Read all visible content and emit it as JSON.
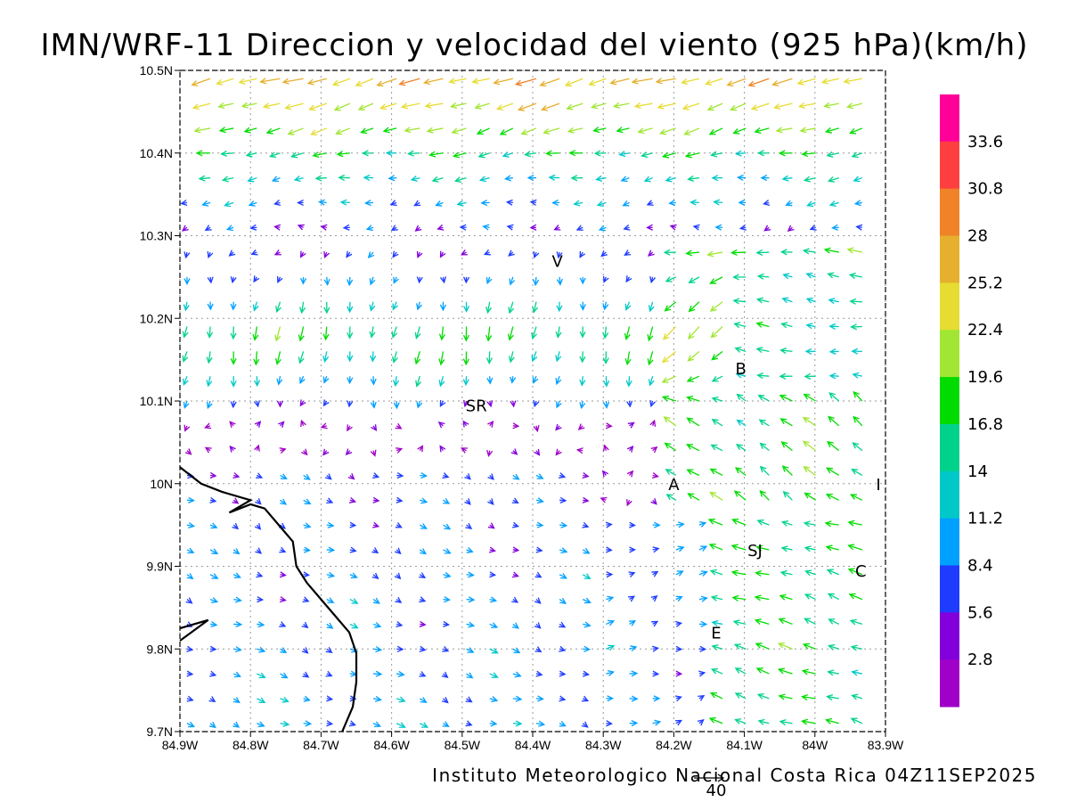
{
  "title": "IMN/WRF-11 Direccion y velocidad del viento (925 hPa)(km/h)",
  "footer": "Instituto Meteorologico Nacional Costa Rica 04Z11SEP2025",
  "reference_vector": {
    "label": "40",
    "value": 40
  },
  "map": {
    "lon_range": [
      -84.9,
      -83.9
    ],
    "lat_range": [
      9.7,
      10.5
    ],
    "x_ticks": [
      {
        "value": -84.9,
        "label": "84.9W"
      },
      {
        "value": -84.8,
        "label": "84.8W"
      },
      {
        "value": -84.7,
        "label": "84.7W"
      },
      {
        "value": -84.6,
        "label": "84.6W"
      },
      {
        "value": -84.5,
        "label": "84.5W"
      },
      {
        "value": -84.4,
        "label": "84.4W"
      },
      {
        "value": -84.3,
        "label": "84.3W"
      },
      {
        "value": -84.2,
        "label": "84.2W"
      },
      {
        "value": -84.1,
        "label": "84.1W"
      },
      {
        "value": -84.0,
        "label": "84W"
      },
      {
        "value": -83.9,
        "label": "83.9W"
      }
    ],
    "y_ticks": [
      {
        "value": 9.7,
        "label": "9.7N"
      },
      {
        "value": 9.8,
        "label": "9.8N"
      },
      {
        "value": 9.9,
        "label": "9.9N"
      },
      {
        "value": 10.0,
        "label": "10N"
      },
      {
        "value": 10.1,
        "label": "10.1N"
      },
      {
        "value": 10.2,
        "label": "10.2N"
      },
      {
        "value": 10.3,
        "label": "10.3N"
      },
      {
        "value": 10.4,
        "label": "10.4N"
      },
      {
        "value": 10.5,
        "label": "10.5N"
      }
    ],
    "grid": true,
    "coastline": [
      [
        -84.9,
        10.02
      ],
      [
        -84.87,
        10.0
      ],
      [
        -84.84,
        9.99
      ],
      [
        -84.8,
        9.98
      ],
      [
        -84.83,
        9.965
      ],
      [
        -84.8,
        9.975
      ],
      [
        -84.78,
        9.97
      ],
      [
        -84.76,
        9.95
      ],
      [
        -84.74,
        9.93
      ],
      [
        -84.735,
        9.9
      ],
      [
        -84.72,
        9.88
      ],
      [
        -84.7,
        9.86
      ],
      [
        -84.68,
        9.84
      ],
      [
        -84.66,
        9.82
      ],
      [
        -84.65,
        9.795
      ],
      [
        -84.65,
        9.76
      ],
      [
        -84.655,
        9.73
      ],
      [
        -84.67,
        9.7
      ]
    ],
    "coastline_small": [
      [
        -84.9,
        9.81
      ],
      [
        -84.86,
        9.835
      ],
      [
        -84.9,
        9.825
      ]
    ],
    "places": [
      {
        "label": "V",
        "lon": -84.365,
        "lat": 10.27
      },
      {
        "label": "SR",
        "lon": -84.48,
        "lat": 10.095
      },
      {
        "label": "B",
        "lon": -84.105,
        "lat": 10.14
      },
      {
        "label": "A",
        "lon": -84.2,
        "lat": 10.0
      },
      {
        "label": "I",
        "lon": -83.91,
        "lat": 10.0
      },
      {
        "label": "SJ",
        "lon": -84.085,
        "lat": 9.92
      },
      {
        "label": "C",
        "lon": -83.935,
        "lat": 9.895
      },
      {
        "label": "E",
        "lon": -84.14,
        "lat": 9.82
      }
    ]
  },
  "colorbar": {
    "ticks": [
      "33.6",
      "30.8",
      "28",
      "25.2",
      "22.4",
      "19.6",
      "16.8",
      "14",
      "11.2",
      "8.4",
      "5.6",
      "2.8"
    ],
    "colors": [
      "#ff0099",
      "#ff3f3f",
      "#f08228",
      "#e6af2d",
      "#e6dc32",
      "#a0e632",
      "#00dc00",
      "#00d28c",
      "#00c8c8",
      "#00a0ff",
      "#1e3cff",
      "#8200dc",
      "#a000c8"
    ]
  }
}
